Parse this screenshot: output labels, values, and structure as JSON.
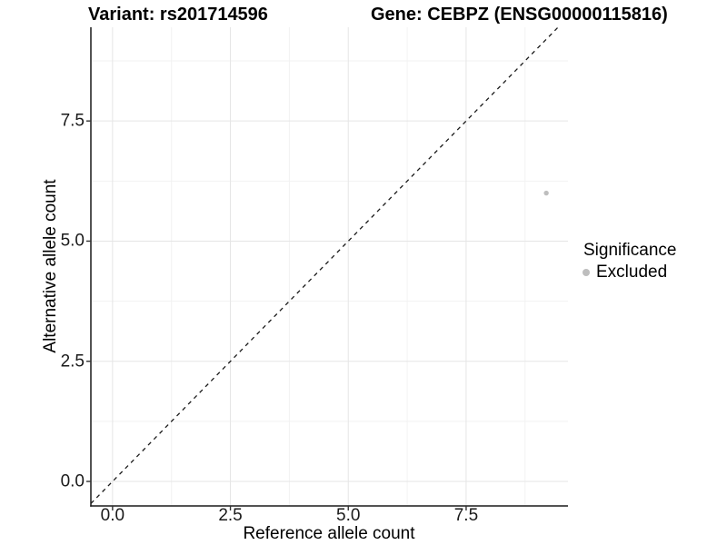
{
  "figure": {
    "background": "#ffffff"
  },
  "chart_data": {
    "type": "scatter",
    "title_left": "Variant: rs201714596",
    "title_right": "Gene: CEBPZ (ENSG00000115816)",
    "xlabel": "Reference allele count",
    "ylabel": "Alternative allele count",
    "xlim": [
      -0.46,
      9.66
    ],
    "ylim": [
      -0.51,
      9.45
    ],
    "x_major_ticks": [
      0,
      2.5,
      5,
      7.5
    ],
    "x_tick_labels": [
      "0.0",
      "2.5",
      "5.0",
      "7.5"
    ],
    "y_major_ticks": [
      0,
      2.5,
      5,
      7.5
    ],
    "y_tick_labels": [
      "0.0",
      "2.5",
      "5.0",
      "7.5"
    ],
    "x_minor_ticks": [
      1.25,
      3.75,
      6.25,
      8.75
    ],
    "y_minor_ticks": [
      1.25,
      3.75,
      6.25,
      8.75
    ],
    "grid": true,
    "colors": {
      "grid_major": "#e5e5e5",
      "grid_minor": "#f2f2f2",
      "axis_line": "#1a1a1a",
      "tick_mark": "#333333"
    },
    "reference_line": {
      "type": "identity",
      "style": "dashed",
      "color": "#1a1a1a"
    },
    "series": [
      {
        "name": "Excluded",
        "color": "#bebebe",
        "points": [
          [
            9.2,
            6.0
          ]
        ]
      }
    ],
    "legend": {
      "position": "right",
      "title": "Significance",
      "items": [
        {
          "label": "Excluded",
          "color": "#bebebe"
        }
      ]
    }
  }
}
